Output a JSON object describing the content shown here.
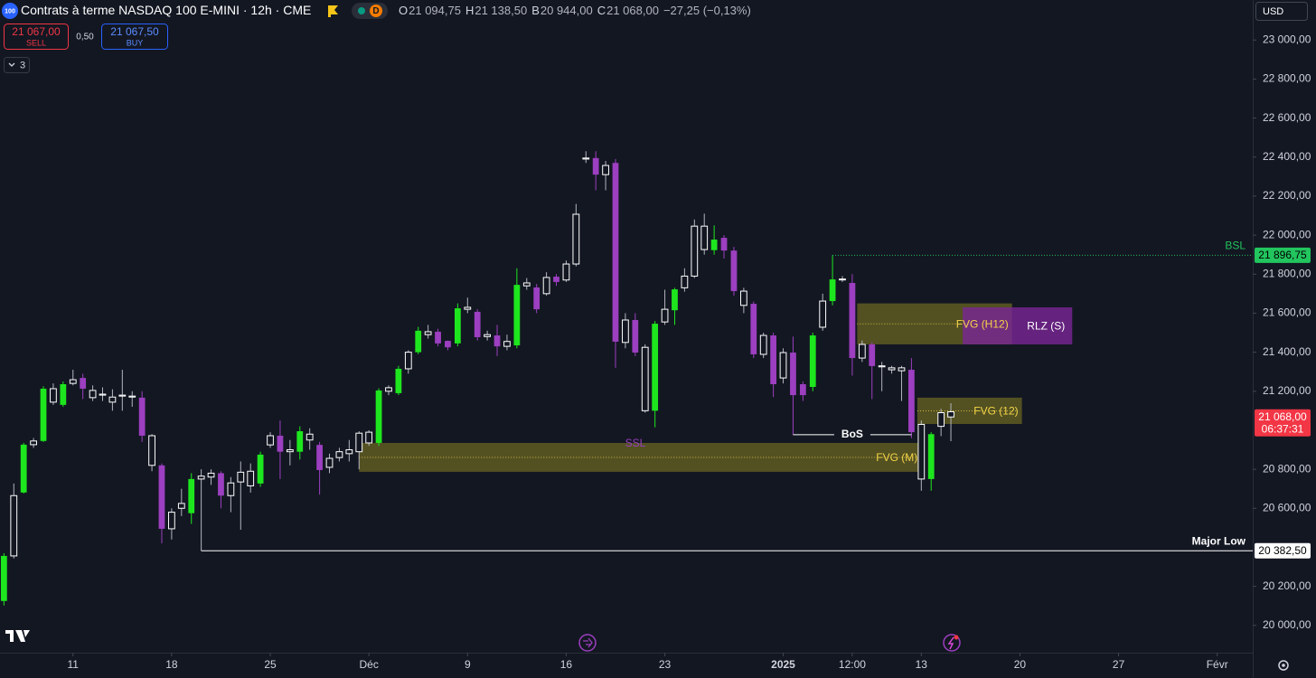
{
  "header": {
    "symbol_badge": "100",
    "title": "Contrats à terme NASDAQ 100 E-MINI · 12h · CME",
    "session_badge": "D",
    "ohlc": [
      {
        "key": "O",
        "value": "21 094,75"
      },
      {
        "key": "H",
        "value": "21 138,50"
      },
      {
        "key": "B",
        "value": "20 944,00"
      },
      {
        "key": "C",
        "value": "21 068,00"
      }
    ],
    "change": "−27,25 (−0,13%)",
    "sell": {
      "price": "21 067,00",
      "label": "SELL"
    },
    "spread": "0,50",
    "buy": {
      "price": "21 067,50",
      "label": "BUY"
    },
    "indicators_count": "3",
    "currency": "USD"
  },
  "chart_data": {
    "type": "candlestick",
    "xlim": [
      -0.4,
      126.6
    ],
    "ylim": [
      19860,
      23205
    ],
    "xticks": [
      {
        "value": 7,
        "label": "11"
      },
      {
        "value": 17,
        "label": "18"
      },
      {
        "value": 27,
        "label": "25"
      },
      {
        "value": 37,
        "label": "Déc"
      },
      {
        "value": 47,
        "label": "9"
      },
      {
        "value": 57,
        "label": "16"
      },
      {
        "value": 67,
        "label": "23"
      },
      {
        "value": 79,
        "label": "2025"
      },
      {
        "value": 86,
        "label": "12:00"
      },
      {
        "value": 93,
        "label": "13"
      },
      {
        "value": 103,
        "label": "20"
      },
      {
        "value": 113,
        "label": "27"
      },
      {
        "value": 123,
        "label": "Févr"
      }
    ],
    "yticks": [
      {
        "value": 20000,
        "label": "20 000,00"
      },
      {
        "value": 20200,
        "label": "20 200,00"
      },
      {
        "value": 20600,
        "label": "20 600,00"
      },
      {
        "value": 20800,
        "label": "20 800,00"
      },
      {
        "value": 21200,
        "label": "21 200,00"
      },
      {
        "value": 21400,
        "label": "21 400,00"
      },
      {
        "value": 21600,
        "label": "21 600,00"
      },
      {
        "value": 21800,
        "label": "21 800,00"
      },
      {
        "value": 22000,
        "label": "22 000,00"
      },
      {
        "value": 22200,
        "label": "22 200,00"
      },
      {
        "value": 22400,
        "label": "22 400,00"
      },
      {
        "value": 22600,
        "label": "22 600,00"
      },
      {
        "value": 22800,
        "label": "22 800,00"
      },
      {
        "value": 23000,
        "label": "23 000,00"
      }
    ],
    "open": [
      20125,
      20356,
      20681,
      20926,
      20945,
      21144,
      21130,
      21240,
      21268,
      21167,
      21180,
      21144,
      21175,
      21175,
      21167,
      20972,
      20820,
      20495,
      20600,
      20575,
      20750,
      20760,
      20780,
      20665,
      20735,
      20715,
      20727,
      20925,
      20972,
      20890,
      20890,
      20950,
      20925,
      20810,
      20860,
      20880,
      20890,
      20935,
      20935,
      21200,
      21190,
      21315,
      21400,
      21490,
      21505,
      21458,
      21445,
      21620,
      21607,
      21480,
      21486,
      21430,
      21435,
      21740,
      21732,
      21700,
      21787,
      21770,
      21852,
      22390,
      22395,
      22310,
      22370,
      21450,
      21565,
      21425,
      21100,
      21555,
      21615,
      21730,
      21790,
      22046,
      21923,
      21986,
      21921,
      21713,
      21648,
      21389,
      21486,
      21268,
      21398,
      21236,
      21222,
      21528,
      21662,
      21775,
      21755,
      21370,
      21440,
      21330,
      21310,
      21320,
      21310,
      21030,
      20750,
      21020,
      21094.75
    ],
    "high": [
      20370,
      20727,
      20935,
      20960,
      21225,
      21240,
      21250,
      21310,
      21290,
      21230,
      21220,
      21210,
      21310,
      21200,
      21200,
      20980,
      20830,
      20600,
      20700,
      20780,
      20800,
      20800,
      20790,
      20760,
      20840,
      20830,
      20890,
      20990,
      21050,
      20950,
      21020,
      21010,
      20940,
      20880,
      20910,
      20950,
      20995,
      21000,
      21215,
      21230,
      21330,
      21410,
      21530,
      21540,
      21520,
      21460,
      21650,
      21680,
      21620,
      21510,
      21540,
      21490,
      21830,
      21780,
      21750,
      21810,
      21800,
      21870,
      22160,
      22430,
      22430,
      22380,
      22390,
      21600,
      21600,
      21440,
      21560,
      21720,
      21730,
      21830,
      22080,
      22110,
      22050,
      22000,
      21940,
      21730,
      21660,
      21500,
      21500,
      21420,
      21480,
      21250,
      21500,
      21700,
      21896.75,
      21790,
      21800,
      21460,
      21450,
      21350,
      21330,
      21330,
      21370,
      21050,
      20990,
      21110,
      21138.5
    ],
    "low": [
      20102,
      20343,
      20676,
      20910,
      20940,
      21130,
      21120,
      21230,
      21160,
      21150,
      21150,
      21100,
      21100,
      21120,
      20940,
      20790,
      20420,
      20440,
      20560,
      20520,
      20382.5,
      20720,
      20600,
      20580,
      20490,
      20680,
      20710,
      20910,
      20750,
      20820,
      20850,
      20900,
      20670,
      20780,
      20840,
      20840,
      20800,
      20920,
      20920,
      21180,
      21180,
      21290,
      21390,
      21470,
      21430,
      21410,
      21430,
      21600,
      21460,
      21460,
      21380,
      21410,
      21420,
      21720,
      21600,
      21690,
      21740,
      21760,
      21840,
      22370,
      22230,
      22230,
      21320,
      21420,
      21380,
      21090,
      21015,
      21540,
      21540,
      21710,
      21780,
      21900,
      21900,
      21880,
      21690,
      21600,
      21370,
      21370,
      21170,
      21240,
      20977,
      21150,
      21200,
      21510,
      21640,
      21760,
      21280,
      21350,
      21160,
      21200,
      21290,
      21150,
      20960,
      20690,
      20690,
      20970,
      20944
    ],
    "close": [
      20356,
      20665,
      20926,
      20945,
      21213,
      21213,
      21236,
      21259,
      21213,
      21204,
      21185,
      21170,
      21180,
      21170,
      20972,
      20820,
      20495,
      20580,
      20625,
      20750,
      20765,
      20780,
      20665,
      20730,
      20785,
      20790,
      20875,
      20972,
      20890,
      20900,
      20995,
      20980,
      20796,
      20856,
      20890,
      20900,
      20985,
      20990,
      21204,
      21218,
      21315,
      21400,
      21510,
      21505,
      21445,
      21425,
      21625,
      21630,
      21477,
      21490,
      21430,
      21455,
      21745,
      21755,
      21620,
      21783,
      21760,
      21852,
      22107,
      22395,
      22310,
      22357,
      21454,
      21565,
      21398,
      21100,
      21546,
      21620,
      21722,
      21790,
      22046,
      21926,
      21977,
      21921,
      21713,
      21640,
      21389,
      21486,
      21236,
      21398,
      21180,
      21180,
      21486,
      21662,
      21773,
      21772,
      21370,
      21440,
      21329,
      21325,
      21320,
      21305,
      20990,
      20750,
      20980,
      21090,
      21068
    ],
    "colors": [
      "#1ee61e",
      "#ffffff",
      "#1ee61e",
      "#ffffff",
      "#1ee61e",
      "#ffffff",
      "#1ee61e",
      "#ffffff",
      "#9c3fc0",
      "#ffffff",
      "#ffffff",
      "#ffffff",
      "#ffffff",
      "#ffffff",
      "#9c3fc0",
      "#ffffff",
      "#9c3fc0",
      "#ffffff",
      "#ffffff",
      "#1ee61e",
      "#ffffff",
      "#ffffff",
      "#9c3fc0",
      "#ffffff",
      "#ffffff",
      "#ffffff",
      "#1ee61e",
      "#ffffff",
      "#9c3fc0",
      "#ffffff",
      "#1ee61e",
      "#ffffff",
      "#9c3fc0",
      "#ffffff",
      "#ffffff",
      "#ffffff",
      "#ffffff",
      "#ffffff",
      "#1ee61e",
      "#ffffff",
      "#1ee61e",
      "#ffffff",
      "#1ee61e",
      "#ffffff",
      "#9c3fc0",
      "#9c3fc0",
      "#1ee61e",
      "#ffffff",
      "#9c3fc0",
      "#ffffff",
      "#9c3fc0",
      "#ffffff",
      "#1ee61e",
      "#ffffff",
      "#9c3fc0",
      "#ffffff",
      "#9c3fc0",
      "#ffffff",
      "#ffffff",
      "#ffffff",
      "#9c3fc0",
      "#ffffff",
      "#9c3fc0",
      "#ffffff",
      "#9c3fc0",
      "#ffffff",
      "#1ee61e",
      "#ffffff",
      "#1ee61e",
      "#ffffff",
      "#ffffff",
      "#ffffff",
      "#1ee61e",
      "#9c3fc0",
      "#9c3fc0",
      "#ffffff",
      "#9c3fc0",
      "#ffffff",
      "#9c3fc0",
      "#ffffff",
      "#9c3fc0",
      "#9c3fc0",
      "#1ee61e",
      "#ffffff",
      "#1ee61e",
      "#ffffff",
      "#9c3fc0",
      "#ffffff",
      "#9c3fc0",
      "#ffffff",
      "#ffffff",
      "#ffffff",
      "#9c3fc0",
      "#ffffff",
      "#1ee61e",
      "#ffffff",
      "#ffffff"
    ],
    "zones": [
      {
        "label": "FVG (M)",
        "x": [
          36,
          93
        ],
        "low": 20787,
        "high": 20935,
        "color": "#5b5822",
        "text_color": "#f5d547"
      },
      {
        "label": "FVG (H12)",
        "x": [
          86.5,
          102.2
        ],
        "low": 21440,
        "high": 21650,
        "color": "#5b5822",
        "text_color": "#f5d547"
      },
      {
        "label": "RLZ (S)",
        "x": [
          97.2,
          108.3
        ],
        "low": 21440,
        "high": 21630,
        "color": "#7b2596",
        "text_color": "#ffffff"
      },
      {
        "label": "FVG (12)",
        "x": [
          92.6,
          103.2
        ],
        "low": 21032,
        "high": 21167,
        "color": "#5b5822",
        "text_color": "#f5d547"
      }
    ],
    "levels": [
      {
        "label": "Major Low",
        "value": 20382.5,
        "from": 20,
        "color": "#ffffff",
        "style": "solid"
      },
      {
        "label": "BSL",
        "value": 21896.75,
        "from": 84,
        "color": "#22c55e",
        "style": "dotted"
      },
      {
        "label": "BoS",
        "value": 20977,
        "from": 80,
        "to": 92,
        "color": "#ffffff",
        "style": "solid"
      }
    ],
    "annotation": {
      "label": "SSL",
      "color": "#9c3fc0"
    },
    "price_tags": [
      {
        "value": 21896.75,
        "label": "21 896,75",
        "color": "#22c55e",
        "text_color": "#000000"
      },
      {
        "value": 21068,
        "label": "21 068,00",
        "sub": "06:37:31",
        "color": "#f23645",
        "text_color": "#ffffff"
      },
      {
        "value": 20382.5,
        "label": "20 382,50",
        "color": "#ffffff",
        "text_color": "#000000"
      }
    ]
  }
}
